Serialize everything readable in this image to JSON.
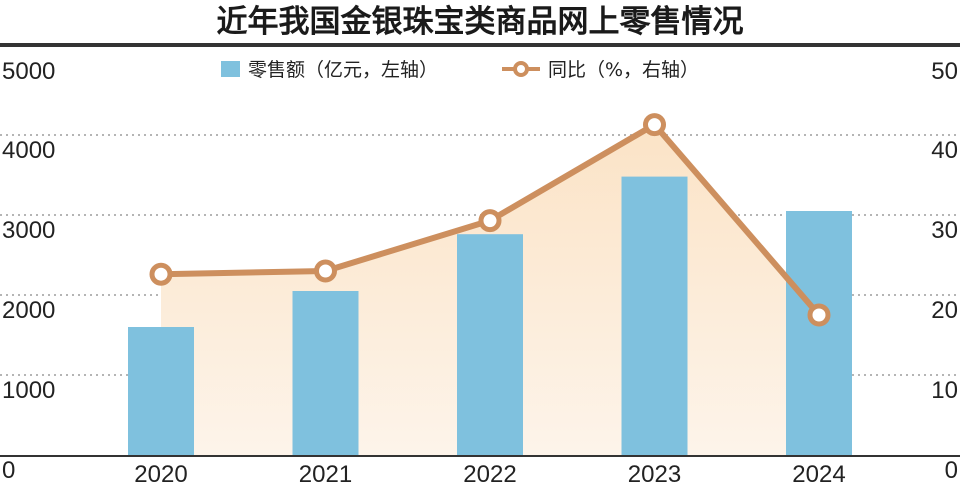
{
  "chart_data": {
    "title": "近年我国金银珠宝类商品网上零售情况",
    "type": "bar+line",
    "categories": [
      "2020",
      "2021",
      "2022",
      "2023",
      "2024"
    ],
    "series": [
      {
        "name": "零售额（亿元，左轴）",
        "type": "bar",
        "axis": "left",
        "values": [
          1600,
          2050,
          2760,
          3480,
          3050
        ]
      },
      {
        "name": "同比（%，右轴）",
        "type": "line",
        "axis": "right",
        "values": [
          22.6,
          23.0,
          29.3,
          41.3,
          17.5
        ]
      }
    ],
    "y_left": {
      "ticks": [
        "0",
        "1000",
        "2000",
        "3000",
        "4000",
        "5000"
      ],
      "ylim": [
        0,
        5000
      ]
    },
    "y_right": {
      "ticks": [
        "0",
        "10",
        "20",
        "30",
        "40",
        "50"
      ],
      "ylim": [
        0,
        50
      ]
    },
    "grid": "dotted horizontal",
    "legend_position": "top-center",
    "colors": {
      "bar": "#7fc1de",
      "line": "#cd8f5e",
      "area_top": "#fbe3c6",
      "area_bottom": "#fdf4ea",
      "grid": "#b5b5b5",
      "frame": "#333333"
    }
  }
}
